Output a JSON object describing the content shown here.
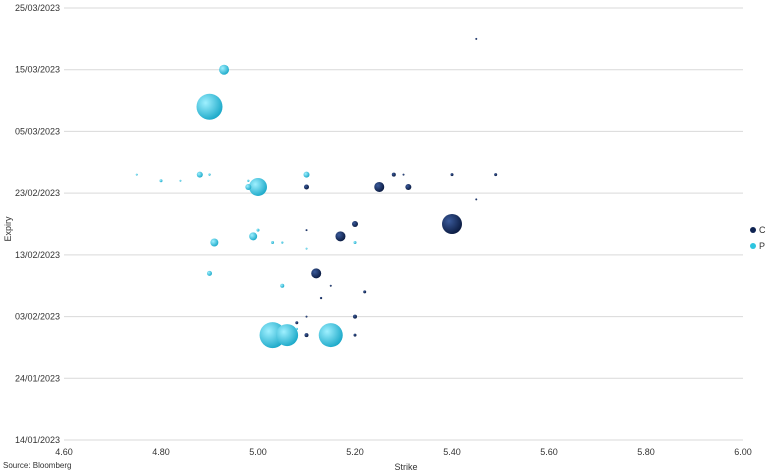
{
  "chart_data": {
    "type": "scatter",
    "xlabel": "Strike",
    "ylabel": "Expiry",
    "xlim": [
      4.6,
      6.0
    ],
    "x_ticks": [
      "4.60",
      "4.80",
      "5.00",
      "5.20",
      "5.40",
      "5.60",
      "5.80",
      "6.00"
    ],
    "y_ticks": [
      "14/01/2023",
      "24/01/2023",
      "03/02/2023",
      "13/02/2023",
      "23/02/2023",
      "05/03/2023",
      "15/03/2023",
      "25/03/2023"
    ],
    "grid": "horizontal",
    "legend": "right",
    "series": [
      {
        "name": "C",
        "color": "#0e2352",
        "points": [
          {
            "x": 5.45,
            "y": "2023-03-20",
            "size": 1
          },
          {
            "x": 5.28,
            "y": "2023-02-26",
            "size": 2
          },
          {
            "x": 5.3,
            "y": "2023-02-26",
            "size": 1
          },
          {
            "x": 5.4,
            "y": "2023-02-26",
            "size": 1.5
          },
          {
            "x": 5.49,
            "y": "2023-02-26",
            "size": 1.5
          },
          {
            "x": 5.25,
            "y": "2023-02-24",
            "size": 5
          },
          {
            "x": 5.31,
            "y": "2023-02-24",
            "size": 3
          },
          {
            "x": 5.1,
            "y": "2023-02-24",
            "size": 2.5
          },
          {
            "x": 5.45,
            "y": "2023-02-22",
            "size": 1
          },
          {
            "x": 5.4,
            "y": "2023-02-18",
            "size": 10
          },
          {
            "x": 5.2,
            "y": "2023-02-18",
            "size": 3
          },
          {
            "x": 5.17,
            "y": "2023-02-16",
            "size": 5
          },
          {
            "x": 5.1,
            "y": "2023-02-17",
            "size": 1
          },
          {
            "x": 5.12,
            "y": "2023-02-10",
            "size": 5
          },
          {
            "x": 5.15,
            "y": "2023-02-08",
            "size": 1
          },
          {
            "x": 5.22,
            "y": "2023-02-07",
            "size": 1.5
          },
          {
            "x": 5.13,
            "y": "2023-02-06",
            "size": 1.2
          },
          {
            "x": 5.2,
            "y": "2023-02-03",
            "size": 2
          },
          {
            "x": 5.1,
            "y": "2023-02-03",
            "size": 1
          },
          {
            "x": 5.08,
            "y": "2023-02-02",
            "size": 1.5
          },
          {
            "x": 5.1,
            "y": "2023-01-31",
            "size": 2
          },
          {
            "x": 5.2,
            "y": "2023-01-31",
            "size": 1.5
          }
        ]
      },
      {
        "name": "P",
        "color": "#2ec5e0",
        "points": [
          {
            "x": 4.93,
            "y": "2023-03-15",
            "size": 5
          },
          {
            "x": 4.9,
            "y": "2023-03-09",
            "size": 13
          },
          {
            "x": 4.75,
            "y": "2023-02-26",
            "size": 1
          },
          {
            "x": 4.88,
            "y": "2023-02-26",
            "size": 3
          },
          {
            "x": 4.9,
            "y": "2023-02-26",
            "size": 1.2
          },
          {
            "x": 5.1,
            "y": "2023-02-26",
            "size": 3
          },
          {
            "x": 4.8,
            "y": "2023-02-25",
            "size": 1.5
          },
          {
            "x": 4.84,
            "y": "2023-02-25",
            "size": 1
          },
          {
            "x": 4.98,
            "y": "2023-02-25",
            "size": 1.2
          },
          {
            "x": 5.0,
            "y": "2023-02-24",
            "size": 9
          },
          {
            "x": 4.98,
            "y": "2023-02-24",
            "size": 3
          },
          {
            "x": 4.99,
            "y": "2023-02-16",
            "size": 4
          },
          {
            "x": 5.0,
            "y": "2023-02-17",
            "size": 1.5
          },
          {
            "x": 4.91,
            "y": "2023-02-15",
            "size": 4
          },
          {
            "x": 5.03,
            "y": "2023-02-15",
            "size": 1.5
          },
          {
            "x": 5.05,
            "y": "2023-02-15",
            "size": 1.2
          },
          {
            "x": 5.2,
            "y": "2023-02-15",
            "size": 1.5
          },
          {
            "x": 5.1,
            "y": "2023-02-14",
            "size": 1
          },
          {
            "x": 4.9,
            "y": "2023-02-10",
            "size": 2.5
          },
          {
            "x": 5.05,
            "y": "2023-02-08",
            "size": 2
          },
          {
            "x": 5.03,
            "y": "2023-01-31",
            "size": 13
          },
          {
            "x": 5.06,
            "y": "2023-01-31",
            "size": 11
          },
          {
            "x": 5.15,
            "y": "2023-01-31",
            "size": 12
          },
          {
            "x": 5.1,
            "y": "2023-01-31",
            "size": 1.5
          },
          {
            "x": 5.08,
            "y": "2023-02-01",
            "size": 1.2
          }
        ]
      }
    ]
  },
  "legend": {
    "items": [
      {
        "label": "C",
        "color": "#0e2352"
      },
      {
        "label": "P",
        "color": "#2ec5e0"
      }
    ]
  },
  "source": "Source: Bloomberg"
}
